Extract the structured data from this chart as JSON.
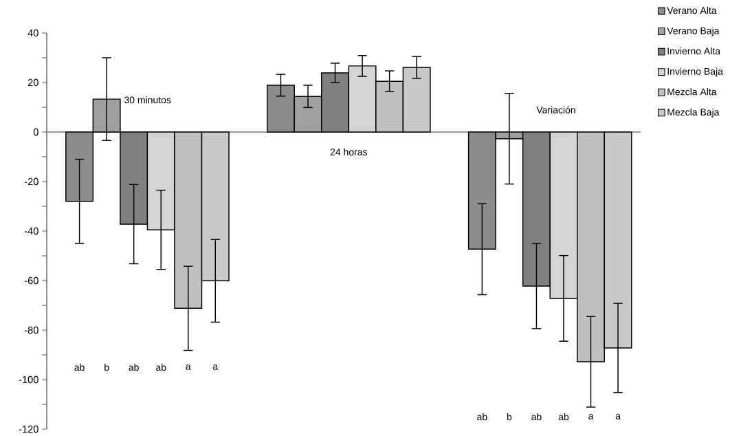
{
  "chart_data": {
    "type": "bar",
    "categories": [
      null,
      null,
      null
    ],
    "series": [
      {
        "name": "Verano Alta",
        "color": "#8c8c8c",
        "values": [
          -28,
          18.9,
          -47.3
        ],
        "errors": [
          17,
          4.4,
          18.4
        ]
      },
      {
        "name": "Verano Baja",
        "color": "#a0a0a0",
        "values": [
          13.3,
          14.4,
          -2.7
        ],
        "errors": [
          16.7,
          4.5,
          18.3
        ]
      },
      {
        "name": "Invierno Alta",
        "color": "#808080",
        "values": [
          -37.2,
          23.9,
          -62.2
        ],
        "errors": [
          16,
          3.9,
          17.2
        ]
      },
      {
        "name": "Invierno Baja",
        "color": "#d4d4d4",
        "values": [
          -39.5,
          26.7,
          -67.2
        ],
        "errors": [
          16,
          4.2,
          17.3
        ]
      },
      {
        "name": "Mezcla Alta",
        "color": "#c0c0c0",
        "values": [
          -71.2,
          20.5,
          -92.8
        ],
        "errors": [
          17,
          4.2,
          18.3
        ]
      },
      {
        "name": "Mezcla Baja",
        "color": "#c8c8c8",
        "values": [
          -60.1,
          26.1,
          -87.2
        ],
        "errors": [
          16.7,
          4.4,
          18
        ]
      }
    ],
    "ylim": [
      -120,
      40
    ],
    "yticks": [
      -120,
      {
        "value": -110,
        "label": null
      },
      -100,
      {
        "value": -90,
        "label": null
      },
      -80,
      {
        "value": -70,
        "label": null
      },
      -60,
      {
        "value": -50,
        "label": null
      },
      -40,
      {
        "value": -30,
        "label": null
      },
      -20,
      {
        "value": -10,
        "label": null
      },
      0,
      {
        "value": 10,
        "label": null
      },
      20,
      {
        "value": 30,
        "label": null
      },
      40
    ],
    "legend": "top right",
    "annotations": [
      "30 minutos",
      "24 horas",
      "Variación",
      "ab",
      "b",
      "ab",
      "ab",
      "a",
      "a",
      "ab",
      "b",
      "ab",
      "ab",
      "a",
      "a"
    ]
  }
}
